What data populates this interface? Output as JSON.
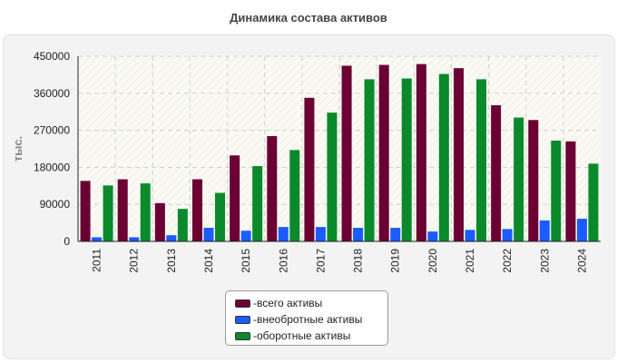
{
  "title": "Динамика состава активов",
  "chart_data": {
    "type": "bar",
    "title": "Динамика состава активов",
    "xlabel": "",
    "ylabel": "тыс.",
    "ylim": [
      0,
      450000
    ],
    "yticks": [
      0,
      90000,
      180000,
      270000,
      360000,
      450000
    ],
    "grid": true,
    "categories": [
      "2011",
      "2012",
      "2013",
      "2014",
      "2015",
      "2016",
      "2017",
      "2018",
      "2019",
      "2020",
      "2021",
      "2022",
      "2023",
      "2024"
    ],
    "series": [
      {
        "name": "всего активы",
        "color": "#6b0033",
        "values": [
          147000,
          151000,
          93000,
          151000,
          209000,
          256000,
          349000,
          427000,
          429000,
          431000,
          421000,
          331000,
          295000,
          243000
        ]
      },
      {
        "name": "внеобротные активы",
        "color": "#1a5cff",
        "values": [
          10000,
          10000,
          15000,
          33000,
          26000,
          35000,
          35000,
          33000,
          33000,
          24000,
          28000,
          30000,
          51000,
          55000
        ]
      },
      {
        "name": "оборотные активы",
        "color": "#0a8a2a",
        "values": [
          136000,
          141000,
          79000,
          118000,
          183000,
          222000,
          313000,
          394000,
          396000,
          407000,
          394000,
          301000,
          245000,
          189000
        ]
      }
    ],
    "legend_position": "bottom-center"
  }
}
